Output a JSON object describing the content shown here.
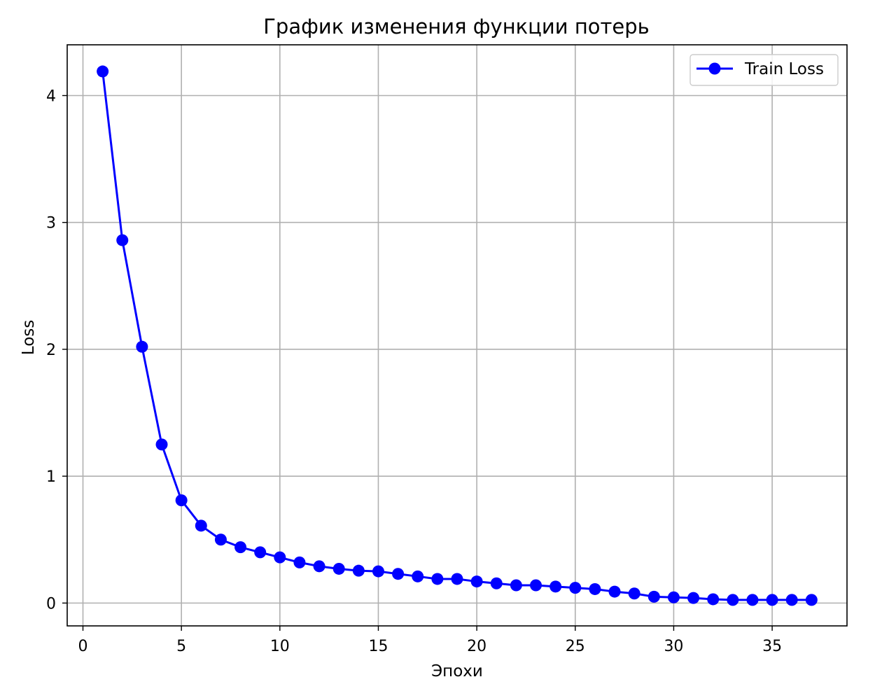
{
  "chart_data": {
    "type": "line",
    "title": "График изменения функции потерь",
    "xlabel": "Эпохи",
    "ylabel": "Loss",
    "xlim": [
      -0.8,
      38.8
    ],
    "ylim": [
      -0.18,
      4.4
    ],
    "xticks": [
      0,
      5,
      10,
      15,
      20,
      25,
      30,
      35
    ],
    "yticks": [
      0,
      1,
      2,
      3,
      4
    ],
    "grid": true,
    "legend_position": "top-right",
    "series": [
      {
        "name": "Train Loss",
        "color": "#0000ff",
        "marker": "circle",
        "x": [
          1,
          2,
          3,
          4,
          5,
          6,
          7,
          8,
          9,
          10,
          11,
          12,
          13,
          14,
          15,
          16,
          17,
          18,
          19,
          20,
          21,
          22,
          23,
          24,
          25,
          26,
          27,
          28,
          29,
          30,
          31,
          32,
          33,
          34,
          35,
          36,
          37
        ],
        "values": [
          4.19,
          2.86,
          2.02,
          1.25,
          0.81,
          0.61,
          0.5,
          0.44,
          0.4,
          0.36,
          0.32,
          0.29,
          0.27,
          0.255,
          0.25,
          0.23,
          0.21,
          0.19,
          0.19,
          0.17,
          0.155,
          0.14,
          0.14,
          0.13,
          0.12,
          0.11,
          0.09,
          0.075,
          0.05,
          0.045,
          0.04,
          0.03,
          0.025,
          0.025,
          0.025,
          0.025,
          0.025
        ]
      }
    ]
  }
}
